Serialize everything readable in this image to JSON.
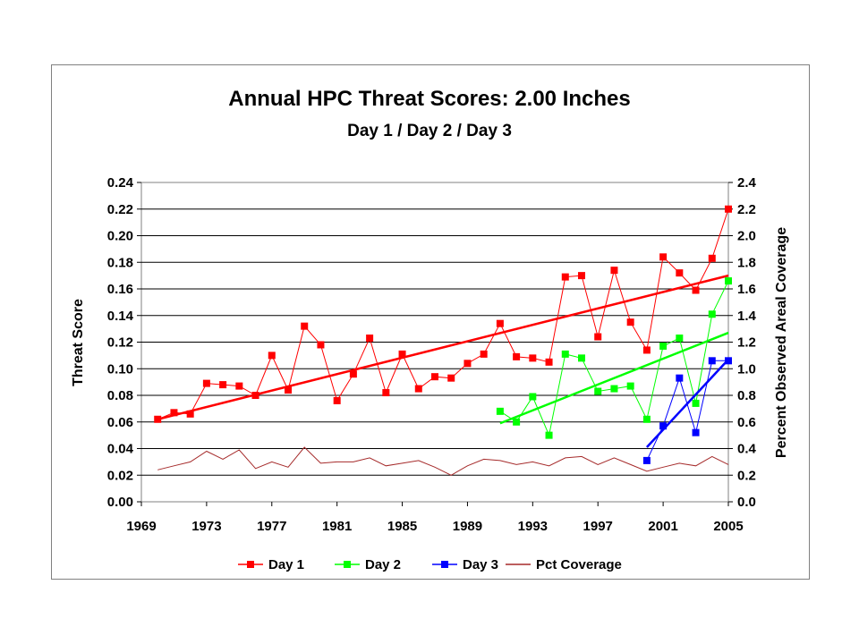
{
  "chart_data": {
    "type": "line",
    "title": "Annual HPC Threat Scores:  2.00 Inches",
    "subtitle": "Day 1 / Day 2 / Day 3",
    "ylabel": "Threat Score",
    "y2label": "Percent Observed Areal Coverage",
    "xlim": [
      1969,
      2005
    ],
    "ylim": [
      0,
      0.24
    ],
    "y2lim": [
      0,
      2.4
    ],
    "xticks": [
      "1969",
      "1973",
      "1977",
      "1981",
      "1985",
      "1989",
      "1993",
      "1997",
      "2001",
      "2005"
    ],
    "yticks": [
      "0.00",
      "0.02",
      "0.04",
      "0.06",
      "0.08",
      "0.10",
      "0.12",
      "0.14",
      "0.16",
      "0.18",
      "0.20",
      "0.22",
      "0.24"
    ],
    "y2ticks": [
      "0.0",
      "0.2",
      "0.4",
      "0.6",
      "0.8",
      "1.0",
      "1.2",
      "1.4",
      "1.6",
      "1.8",
      "2.0",
      "2.2",
      "2.4"
    ],
    "grid": "horizontal",
    "legend_position": "bottom",
    "series": [
      {
        "name": "Day 1",
        "color": "#ff0000",
        "marker": "square",
        "axis": "left",
        "x": [
          1970,
          1971,
          1972,
          1973,
          1974,
          1975,
          1976,
          1977,
          1978,
          1979,
          1980,
          1981,
          1982,
          1983,
          1984,
          1985,
          1986,
          1987,
          1988,
          1989,
          1990,
          1991,
          1992,
          1993,
          1994,
          1995,
          1996,
          1997,
          1998,
          1999,
          2000,
          2001,
          2002,
          2003,
          2004,
          2005
        ],
        "values": [
          0.062,
          0.067,
          0.066,
          0.089,
          0.088,
          0.087,
          0.08,
          0.11,
          0.084,
          0.132,
          0.118,
          0.076,
          0.096,
          0.123,
          0.082,
          0.111,
          0.085,
          0.094,
          0.093,
          0.104,
          0.111,
          0.134,
          0.109,
          0.108,
          0.105,
          0.169,
          0.17,
          0.124,
          0.174,
          0.135,
          0.114,
          0.184,
          0.172,
          0.159,
          0.183,
          0.22
        ],
        "trend": [
          [
            1970,
            0.062
          ],
          [
            2005,
            0.17
          ]
        ]
      },
      {
        "name": "Day 2",
        "color": "#00ff00",
        "marker": "square",
        "axis": "left",
        "x": [
          1991,
          1992,
          1993,
          1994,
          1995,
          1996,
          1997,
          1998,
          1999,
          2000,
          2001,
          2002,
          2003,
          2004,
          2005
        ],
        "values": [
          0.068,
          0.06,
          0.079,
          0.05,
          0.111,
          0.108,
          0.083,
          0.085,
          0.087,
          0.062,
          0.117,
          0.123,
          0.074,
          0.141,
          0.166
        ],
        "trend": [
          [
            1991,
            0.059
          ],
          [
            2005,
            0.127
          ]
        ]
      },
      {
        "name": "Day 3",
        "color": "#0000ff",
        "marker": "square",
        "axis": "left",
        "x": [
          2000,
          2001,
          2002,
          2003,
          2004,
          2005
        ],
        "values": [
          0.031,
          0.057,
          0.093,
          0.052,
          0.106,
          0.106
        ],
        "trend": [
          [
            2000,
            0.041
          ],
          [
            2005,
            0.107
          ]
        ]
      },
      {
        "name": "Pct Coverage",
        "color": "#a52a2a",
        "marker": "none",
        "axis": "right",
        "x": [
          1970,
          1971,
          1972,
          1973,
          1974,
          1975,
          1976,
          1977,
          1978,
          1979,
          1980,
          1981,
          1982,
          1983,
          1984,
          1985,
          1986,
          1987,
          1988,
          1989,
          1990,
          1991,
          1992,
          1993,
          1994,
          1995,
          1996,
          1997,
          1998,
          1999,
          2000,
          2001,
          2002,
          2003,
          2004,
          2005
        ],
        "values": [
          0.24,
          0.27,
          0.3,
          0.38,
          0.32,
          0.39,
          0.25,
          0.3,
          0.26,
          0.41,
          0.29,
          0.3,
          0.3,
          0.33,
          0.27,
          0.29,
          0.31,
          0.26,
          0.2,
          0.27,
          0.32,
          0.31,
          0.28,
          0.3,
          0.27,
          0.33,
          0.34,
          0.28,
          0.33,
          0.28,
          0.23,
          0.26,
          0.29,
          0.27,
          0.34,
          0.28
        ]
      }
    ]
  }
}
